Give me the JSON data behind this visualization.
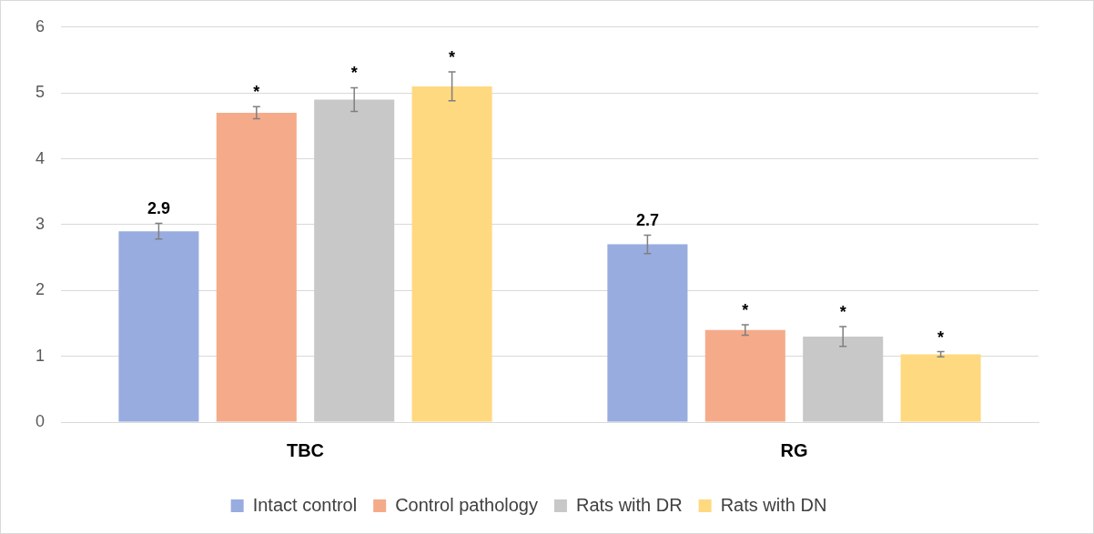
{
  "chart_data": {
    "type": "bar",
    "categories": [
      "TBC",
      "RG"
    ],
    "series": [
      {
        "name": "Intact control",
        "color": "#99acdf",
        "values": [
          2.9,
          2.7
        ],
        "errors": [
          0.12,
          0.14
        ],
        "value_labels": [
          "2.9",
          "2.7"
        ]
      },
      {
        "name": "Control pathology",
        "color": "#f5ab8a",
        "values": [
          4.7,
          1.4
        ],
        "errors": [
          0.09,
          0.08
        ],
        "value_labels": [
          "*",
          "*"
        ]
      },
      {
        "name": "Rats with DR",
        "color": "#c8c8c8",
        "values": [
          4.9,
          1.3
        ],
        "errors": [
          0.18,
          0.15
        ],
        "value_labels": [
          "*",
          "*"
        ]
      },
      {
        "name": "Rats with DN",
        "color": "#ffd980",
        "values": [
          5.1,
          1.03
        ],
        "errors": [
          0.22,
          0.04
        ],
        "value_labels": [
          "*",
          "*"
        ]
      }
    ],
    "ylim": [
      0,
      6
    ],
    "yticks": [
      0,
      1,
      2,
      3,
      4,
      5,
      6
    ],
    "grid": "y",
    "legend": "bottom"
  }
}
